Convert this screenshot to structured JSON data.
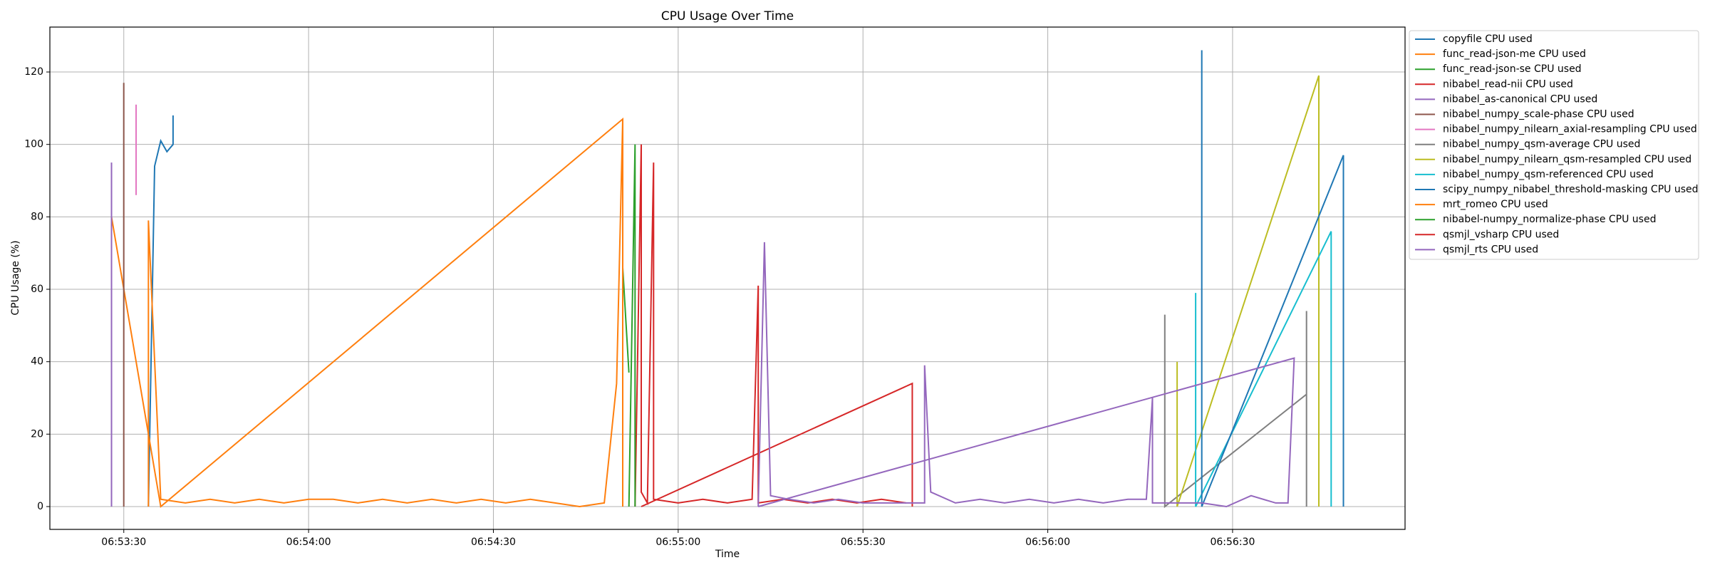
{
  "chart_data": {
    "type": "line",
    "title": "CPU Usage Over Time",
    "x_label": "Time",
    "y_label": "CPU Usage (%)",
    "xlim": [
      "06:53:18",
      "06:56:58"
    ],
    "xticks": [
      "06:53:30",
      "06:54:00",
      "06:54:30",
      "06:55:00",
      "06:55:30",
      "06:56:00",
      "06:56:30"
    ],
    "ylim": [
      -6.3,
      132.4
    ],
    "yticks": [
      0,
      20,
      40,
      60,
      80,
      100,
      120
    ],
    "grid": true,
    "legend": "outside-upper-right",
    "series": [
      {
        "name": "copyfile CPU used",
        "color": "#1f77b4",
        "x": [
          "06:53:34",
          "06:53:35",
          "06:53:36",
          "06:53:37",
          "06:53:38",
          "06:53:38"
        ],
        "values": [
          0,
          94,
          101,
          98,
          100,
          108
        ]
      },
      {
        "name": "func_read-json-me CPU used",
        "color": "#ff7f0e",
        "x": [
          "06:53:28",
          "06:53:28",
          "06:53:36",
          "06:54:51",
          "06:54:51"
        ],
        "values": [
          0,
          80,
          0,
          107,
          0
        ]
      },
      {
        "name": "func_read-json-se CPU used",
        "color": "#2ca02c",
        "x": [
          "06:54:51",
          "06:54:51",
          "06:54:52"
        ],
        "values": [
          0,
          66,
          37
        ]
      },
      {
        "name": "nibabel_read-nii CPU used",
        "color": "#d62728",
        "x": [
          "06:54:53",
          "06:54:54",
          "06:54:54",
          "06:54:55",
          "06:54:56",
          "06:54:56",
          "06:55:00",
          "06:55:04",
          "06:55:08",
          "06:55:12",
          "06:55:13",
          "06:55:13",
          "06:55:17",
          "06:55:21",
          "06:55:25",
          "06:55:29",
          "06:55:33",
          "06:55:37"
        ],
        "values": [
          0,
          100,
          4,
          1,
          95,
          2,
          1,
          2,
          1,
          2,
          61,
          1,
          2,
          1,
          2,
          1,
          2,
          1
        ]
      },
      {
        "name": "nibabel_as-canonical CPU used",
        "color": "#9467bd",
        "x": [
          "06:53:28",
          "06:53:28",
          "06:53:28"
        ],
        "values": [
          0,
          95,
          84
        ]
      },
      {
        "name": "nibabel_numpy_scale-phase CPU used",
        "color": "#8c564b",
        "x": [
          "06:53:30",
          "06:53:30",
          "06:53:30"
        ],
        "values": [
          0,
          117,
          0
        ]
      },
      {
        "name": "nibabel_numpy_nilearn_axial-resampling CPU used",
        "color": "#e377c2",
        "x": [
          "06:53:32",
          "06:53:32"
        ],
        "values": [
          111,
          86
        ]
      },
      {
        "name": "nibabel_numpy_qsm-average CPU used",
        "color": "#7f7f7f",
        "x": [
          "06:56:19",
          "06:56:19",
          "06:56:19",
          "06:56:42",
          "06:56:42",
          "06:56:42"
        ],
        "values": [
          0,
          53,
          0,
          31,
          54,
          0
        ]
      },
      {
        "name": "nibabel_numpy_nilearn_qsm-resampled CPU used",
        "color": "#bcbd22",
        "x": [
          "06:56:21",
          "06:56:21",
          "06:56:44",
          "06:56:44"
        ],
        "values": [
          40,
          0,
          119,
          0
        ]
      },
      {
        "name": "nibabel_numpy_qsm-referenced CPU used",
        "color": "#17becf",
        "x": [
          "06:56:24",
          "06:56:24",
          "06:56:24",
          "06:56:24",
          "06:56:46",
          "06:56:46",
          "06:56:46"
        ],
        "values": [
          0,
          59,
          55,
          0,
          76,
          73,
          0
        ]
      },
      {
        "name": "scipy_numpy_nibabel_threshold-masking CPU used",
        "color": "#1f77b4",
        "x": [
          "06:56:25",
          "06:56:25",
          "06:56:25",
          "06:56:48",
          "06:56:48"
        ],
        "values": [
          0,
          126,
          0,
          97,
          0
        ]
      },
      {
        "name": "mrt_romeo CPU used",
        "color": "#ff7f0e",
        "x": [
          "06:53:34",
          "06:53:34",
          "06:53:36",
          "06:53:40",
          "06:53:44",
          "06:53:48",
          "06:53:52",
          "06:53:56",
          "06:54:00",
          "06:54:04",
          "06:54:08",
          "06:54:12",
          "06:54:16",
          "06:54:20",
          "06:54:24",
          "06:54:28",
          "06:54:32",
          "06:54:36",
          "06:54:40",
          "06:54:44",
          "06:54:48",
          "06:54:50",
          "06:54:51",
          "06:54:51"
        ],
        "values": [
          0,
          79,
          2,
          1,
          2,
          1,
          2,
          1,
          2,
          2,
          1,
          2,
          1,
          2,
          1,
          2,
          1,
          2,
          1,
          0,
          1,
          34,
          107,
          0
        ]
      },
      {
        "name": "nibabel-numpy_normalize-phase CPU used",
        "color": "#2ca02c",
        "x": [
          "06:54:52",
          "06:54:53",
          "06:54:53"
        ],
        "values": [
          0,
          100,
          0
        ]
      },
      {
        "name": "qsmjl_vsharp CPU used",
        "color": "#d62728",
        "x": [
          "06:54:54",
          "06:55:38",
          "06:55:38"
        ],
        "values": [
          0,
          34,
          0
        ]
      },
      {
        "name": "qsmjl_rts CPU used",
        "color": "#9467bd",
        "x": [
          "06:55:13",
          "06:55:14",
          "06:55:15",
          "06:55:18",
          "06:55:22",
          "06:55:26",
          "06:55:30",
          "06:55:34",
          "06:55:38",
          "06:55:40",
          "06:55:40",
          "06:55:41",
          "06:55:45",
          "06:55:49",
          "06:55:53",
          "06:55:57",
          "06:56:01",
          "06:56:05",
          "06:56:09",
          "06:56:13",
          "06:56:16",
          "06:56:17",
          "06:56:17",
          "06:56:21",
          "06:56:25",
          "06:56:29",
          "06:56:33",
          "06:56:37",
          "06:56:39",
          "06:56:40",
          "06:55:13"
        ],
        "values": [
          0,
          73,
          3,
          2,
          1,
          2,
          1,
          1,
          1,
          1,
          39,
          4,
          1,
          2,
          1,
          2,
          1,
          2,
          1,
          2,
          2,
          30,
          1,
          1,
          1,
          0,
          3,
          1,
          1,
          41,
          0
        ]
      }
    ]
  }
}
